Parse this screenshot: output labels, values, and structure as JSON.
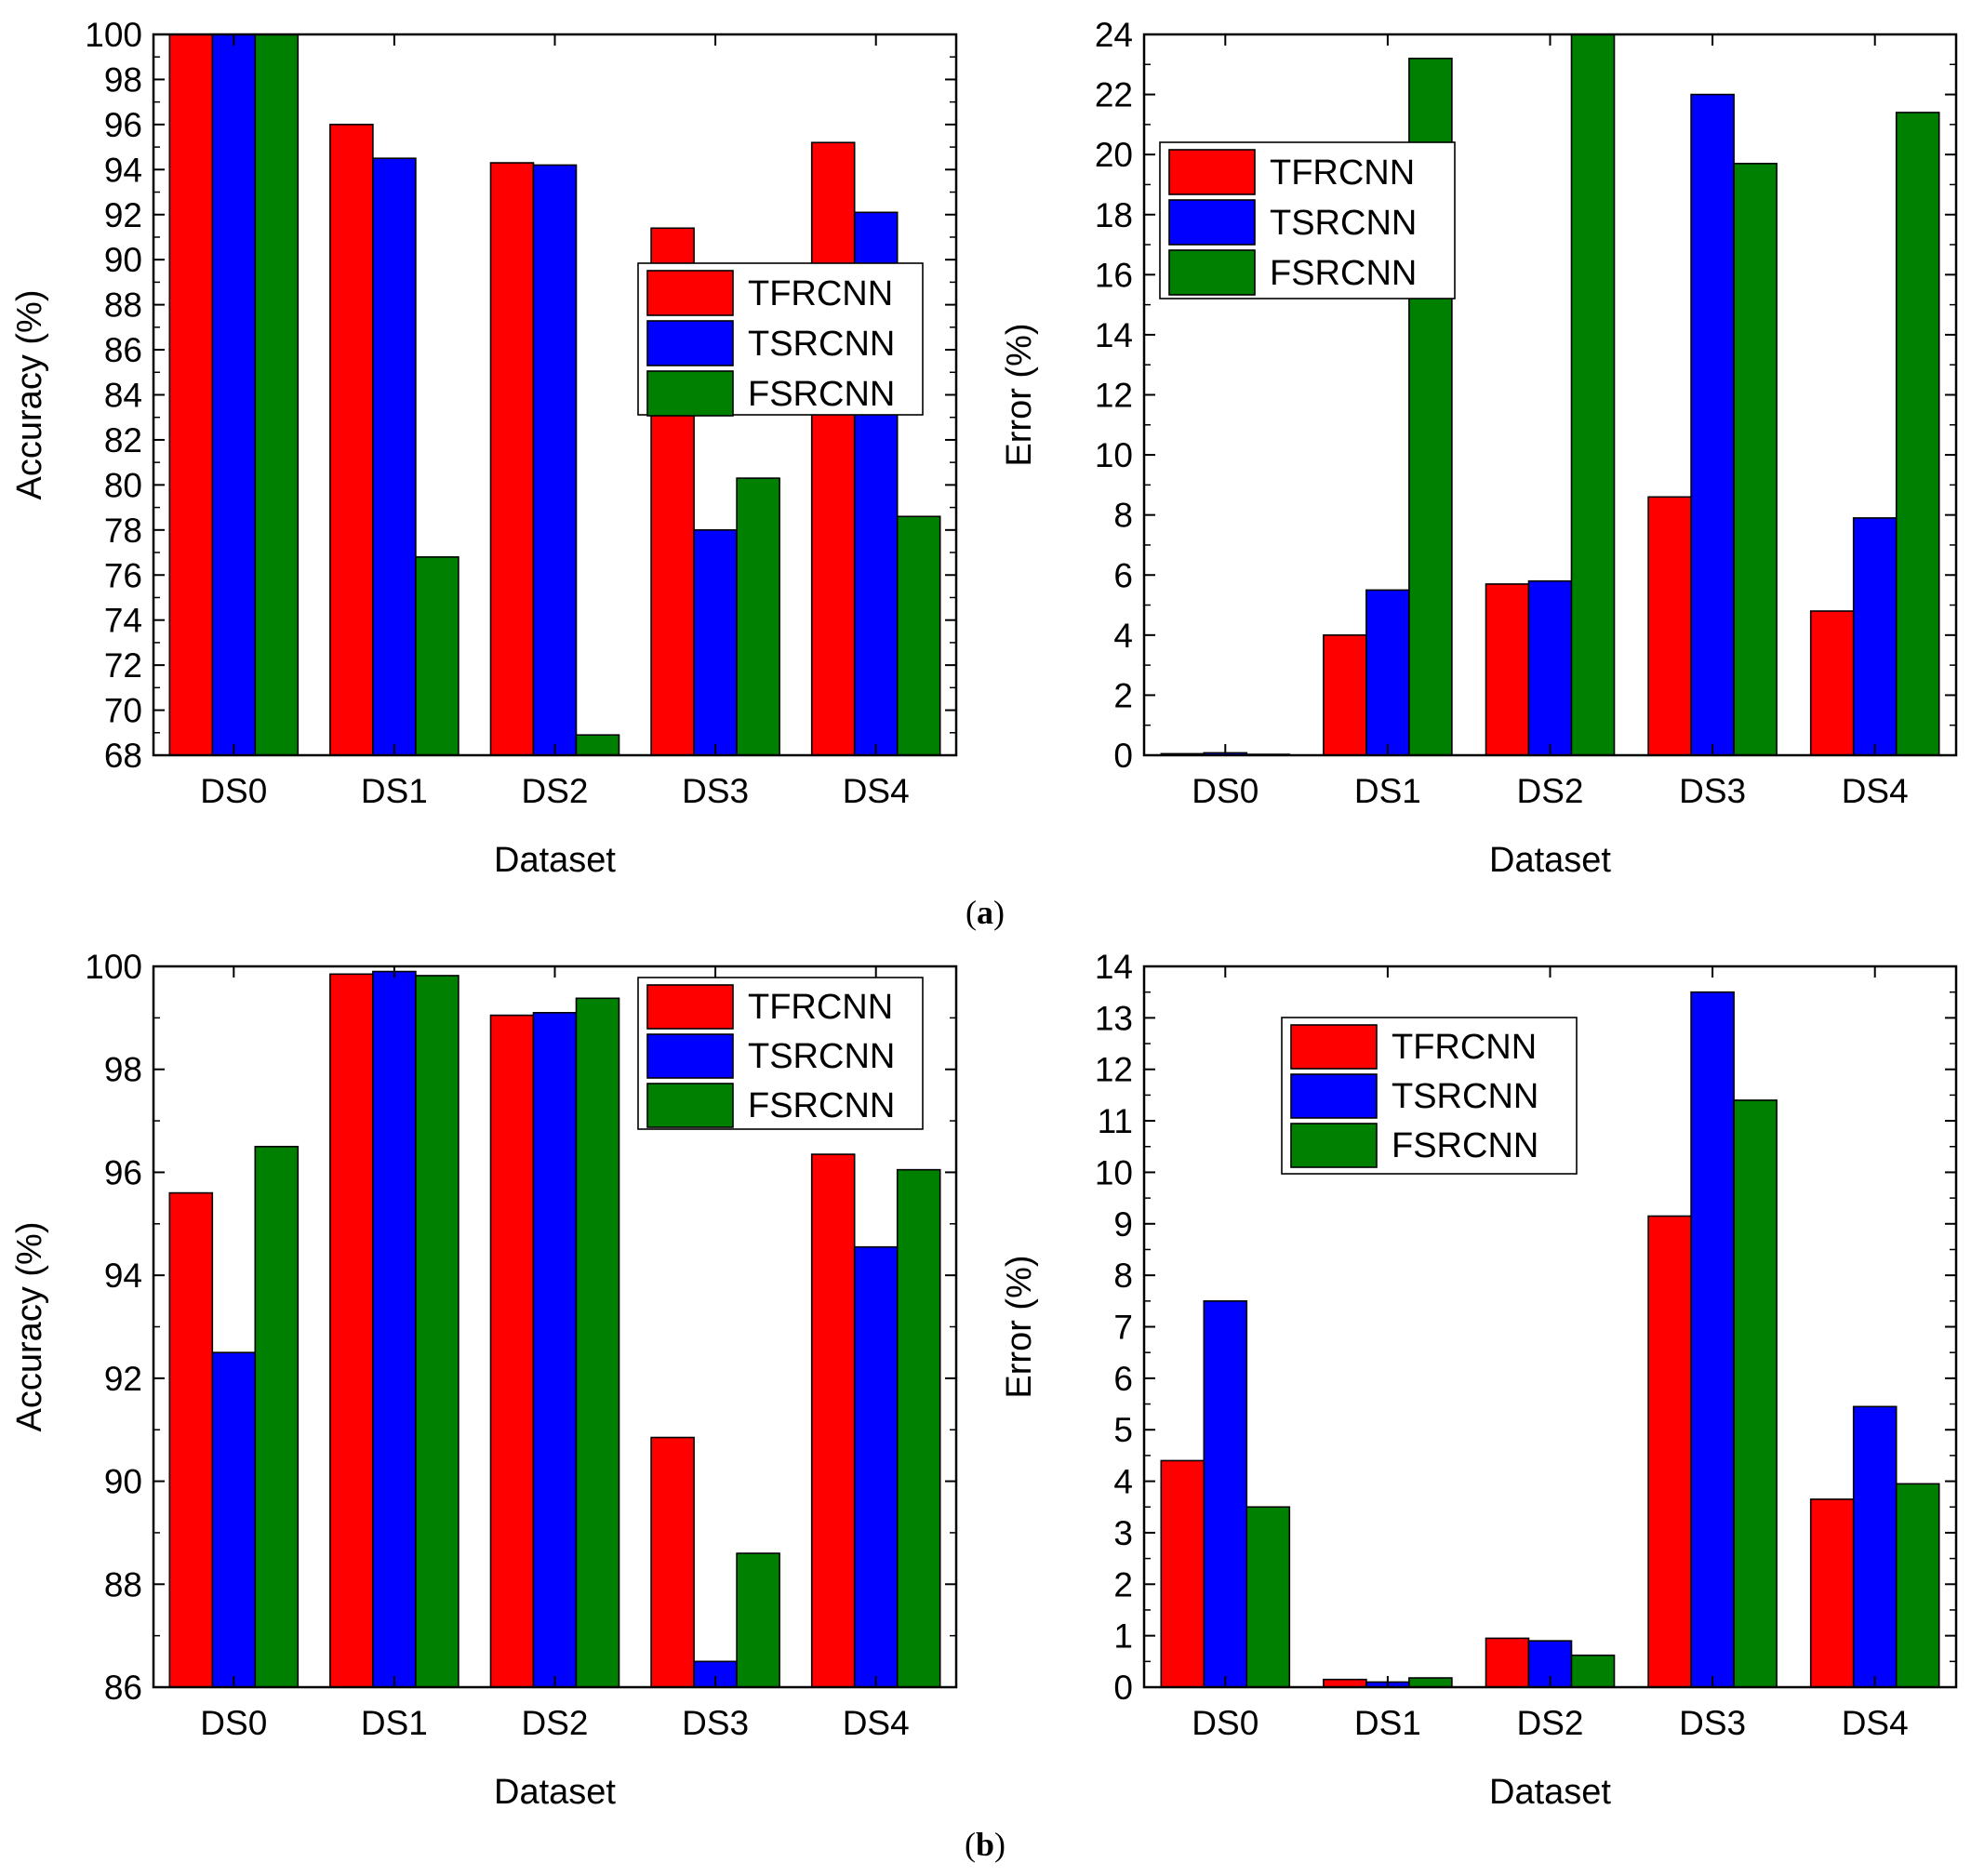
{
  "panels": [
    {
      "label": "a",
      "caption_open": "(",
      "caption_close": ")"
    },
    {
      "label": "b",
      "caption_open": "(",
      "caption_close": ")"
    }
  ],
  "colors": {
    "TFRCNN": "#ff0000",
    "TSRCNN": "#0000ff",
    "FSRCNN": "#008000"
  },
  "chart_data": [
    {
      "type": "bar",
      "panel": "a",
      "title": "",
      "xlabel": "Dataset",
      "ylabel": "Accuracy (%)",
      "categories": [
        "DS0",
        "DS1",
        "DS2",
        "DS3",
        "DS4"
      ],
      "ylim": [
        68,
        100
      ],
      "yticks": [
        68,
        70,
        72,
        74,
        76,
        78,
        80,
        82,
        84,
        86,
        88,
        90,
        92,
        94,
        96,
        98,
        100
      ],
      "legend_position": "center-right",
      "series": [
        {
          "name": "TFRCNN",
          "values": [
            100,
            96.0,
            94.3,
            91.4,
            95.2
          ]
        },
        {
          "name": "TSRCNN",
          "values": [
            100,
            94.5,
            94.2,
            78.0,
            92.1
          ]
        },
        {
          "name": "FSRCNN",
          "values": [
            100,
            76.8,
            68.9,
            80.3,
            78.6
          ]
        }
      ]
    },
    {
      "type": "bar",
      "panel": "a",
      "title": "",
      "xlabel": "Dataset",
      "ylabel": "Error (%)",
      "categories": [
        "DS0",
        "DS1",
        "DS2",
        "DS3",
        "DS4"
      ],
      "ylim": [
        0,
        24
      ],
      "yticks": [
        0,
        2,
        4,
        6,
        8,
        10,
        12,
        14,
        16,
        18,
        20,
        22,
        24
      ],
      "legend_position": "top-left",
      "series": [
        {
          "name": "TFRCNN",
          "values": [
            0.05,
            4.0,
            5.7,
            8.6,
            4.8
          ]
        },
        {
          "name": "TSRCNN",
          "values": [
            0.08,
            5.5,
            5.8,
            22.0,
            7.9
          ]
        },
        {
          "name": "FSRCNN",
          "values": [
            0.03,
            23.2,
            24.0,
            19.7,
            21.4
          ]
        }
      ]
    },
    {
      "type": "bar",
      "panel": "b",
      "title": "",
      "xlabel": "Dataset",
      "ylabel": "Accuracy (%)",
      "categories": [
        "DS0",
        "DS1",
        "DS2",
        "DS3",
        "DS4"
      ],
      "ylim": [
        86,
        100
      ],
      "yticks": [
        86,
        88,
        90,
        92,
        94,
        96,
        98,
        100
      ],
      "legend_position": "top-right",
      "series": [
        {
          "name": "TFRCNN",
          "values": [
            95.6,
            99.85,
            99.05,
            90.85,
            96.35
          ]
        },
        {
          "name": "TSRCNN",
          "values": [
            92.5,
            99.9,
            99.1,
            86.5,
            94.55
          ]
        },
        {
          "name": "FSRCNN",
          "values": [
            96.5,
            99.82,
            99.38,
            88.6,
            96.05
          ]
        }
      ]
    },
    {
      "type": "bar",
      "panel": "b",
      "title": "",
      "xlabel": "Dataset",
      "ylabel": "Error (%)",
      "categories": [
        "DS0",
        "DS1",
        "DS2",
        "DS3",
        "DS4"
      ],
      "ylim": [
        0,
        14
      ],
      "yticks": [
        0,
        1,
        2,
        3,
        4,
        5,
        6,
        7,
        8,
        9,
        10,
        11,
        12,
        13,
        14
      ],
      "legend_position": "top-center",
      "series": [
        {
          "name": "TFRCNN",
          "values": [
            4.4,
            0.15,
            0.95,
            9.15,
            3.65
          ]
        },
        {
          "name": "TSRCNN",
          "values": [
            7.5,
            0.1,
            0.9,
            13.5,
            5.45
          ]
        },
        {
          "name": "FSRCNN",
          "values": [
            3.5,
            0.18,
            0.62,
            11.4,
            3.95
          ]
        }
      ]
    }
  ]
}
